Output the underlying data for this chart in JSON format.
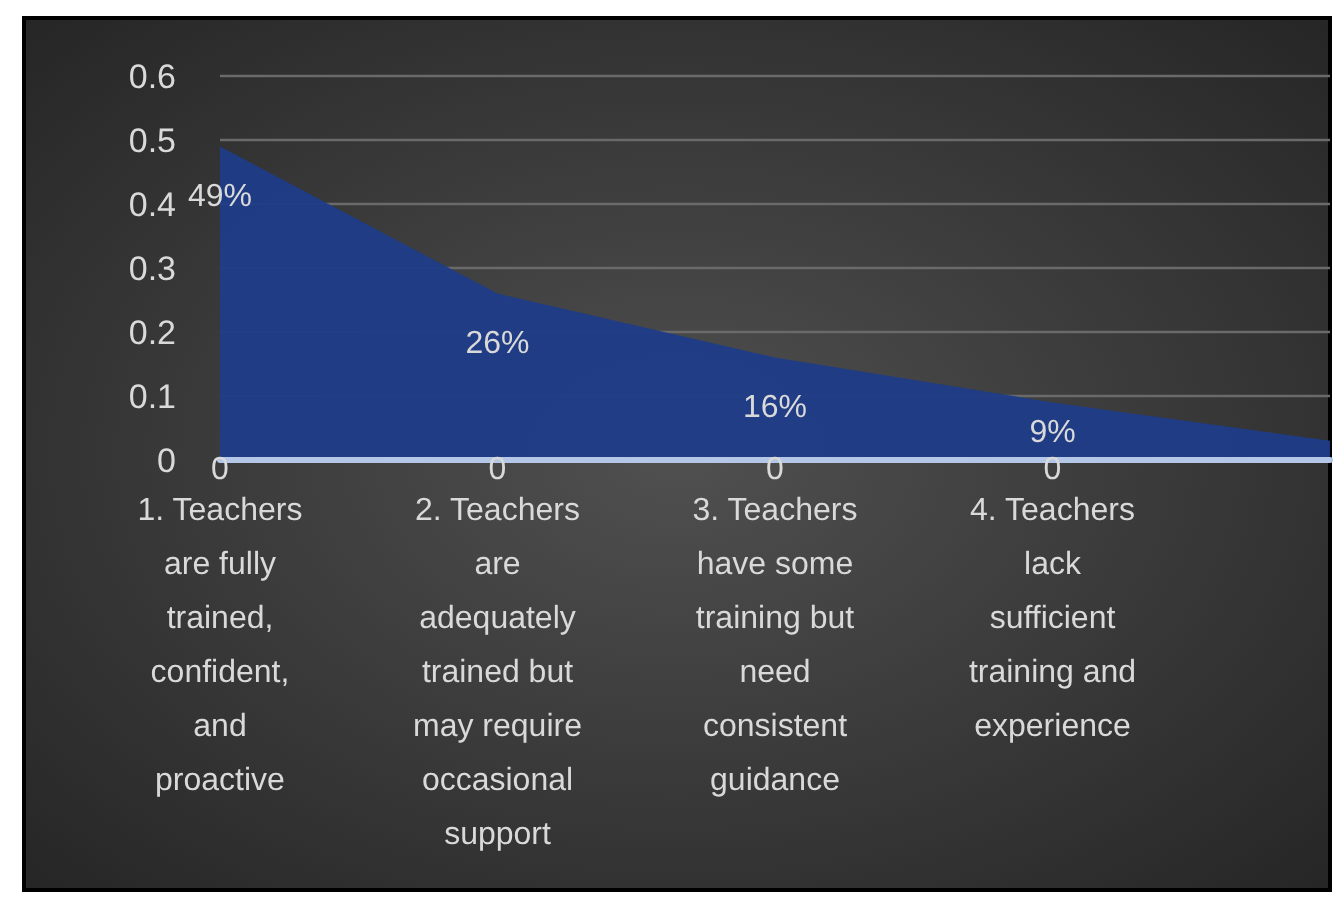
{
  "chart_data": {
    "type": "area",
    "categories": [
      "1. Teachers are fully trained, confident, and proactive",
      "2. Teachers are adequately trained but may require occasional support",
      "3. Teachers have some training but need consistent guidance",
      "4. Teachers lack sufficient training and experience",
      null
    ],
    "series": [
      {
        "color": "#1f3c88",
        "values": [
          0.49,
          0.26,
          0.16,
          0.09,
          0.03
        ],
        "value_labels": [
          "49%",
          "26%",
          "16%",
          "9%",
          null
        ]
      },
      {
        "type": "line",
        "color": "#b4c7e7",
        "values": [
          0,
          0,
          0,
          0,
          0
        ],
        "value_labels": [
          "0",
          "0",
          "0",
          "0",
          null
        ]
      }
    ],
    "ylim": [
      0,
      0.6
    ],
    "yticks": [
      0,
      0.1,
      0.2,
      0.3,
      0.4,
      0.5,
      0.6
    ],
    "grid": "y"
  }
}
